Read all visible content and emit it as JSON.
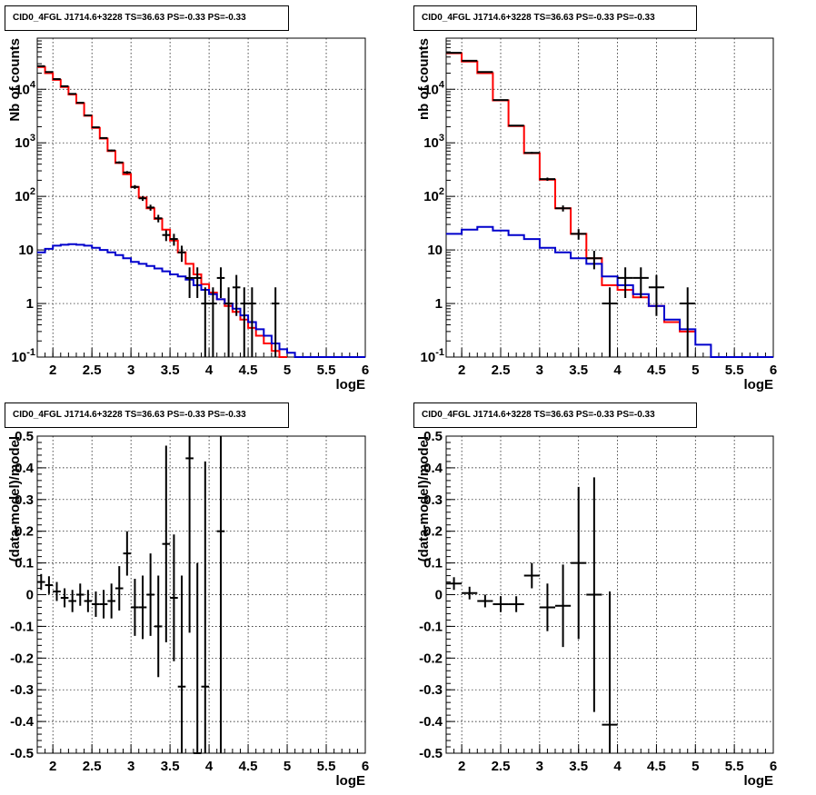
{
  "chart_data": [
    {
      "type": "histogram-log",
      "title": "CID0_4FGL J1714.6+3228 TS=36.63 PS=-0.33 PS=-0.33",
      "xlabel": "logE",
      "ylabel": "Nb of counts",
      "xlim": [
        1.8,
        6
      ],
      "ylim": [
        0.1,
        90000
      ],
      "yscale": "log",
      "grid": true,
      "xticks": [
        "2",
        "2.5",
        "3",
        "3.5",
        "4",
        "4.5",
        "5",
        "5.5",
        "6"
      ],
      "yticks": [
        "10^-1",
        "1",
        "10",
        "10^2",
        "10^3",
        "10^4"
      ],
      "bin_edges": [
        1.8,
        1.9,
        2.0,
        2.1,
        2.2,
        2.3,
        2.4,
        2.5,
        2.6,
        2.7,
        2.8,
        2.9,
        3.0,
        3.1,
        3.2,
        3.3,
        3.4,
        3.5,
        3.6,
        3.7,
        3.8,
        3.9,
        4.0,
        4.1,
        4.2,
        4.3,
        4.4,
        4.5,
        4.6,
        4.7,
        4.8,
        4.9,
        5.0,
        5.1,
        5.2,
        5.3,
        5.4,
        5.5,
        5.6,
        5.7,
        5.8,
        5.9,
        6.0
      ],
      "series": [
        {
          "name": "model",
          "color": "#ff0000",
          "values": [
            26000,
            20000,
            15000,
            11000,
            8000,
            5500,
            3200,
            1900,
            1200,
            700,
            420,
            260,
            150,
            95,
            60,
            38,
            24,
            15,
            9,
            5.5,
            3.5,
            2.3,
            1.6,
            1.2,
            0.9,
            0.7,
            0.5,
            0.35,
            0.25,
            0.18,
            0.13,
            0.1,
            null,
            null,
            null,
            null,
            null,
            null,
            null,
            null,
            null,
            null
          ]
        },
        {
          "name": "source",
          "color": "#0000cc",
          "values": [
            9,
            10.5,
            12,
            12.5,
            12.8,
            12.5,
            12,
            11,
            10,
            9,
            8,
            7,
            6,
            5.5,
            5,
            4.5,
            4,
            3.5,
            3.2,
            2.8,
            2.2,
            1.8,
            1.5,
            1.2,
            1,
            0.8,
            0.6,
            0.45,
            0.33,
            0.25,
            0.18,
            0.14,
            0.12,
            0.1,
            0.1,
            0.1,
            0.1,
            0.1,
            0.1,
            0.1,
            0.1,
            0.1
          ]
        }
      ],
      "data_points": {
        "x": [
          1.85,
          1.95,
          2.05,
          2.15,
          2.25,
          2.35,
          2.45,
          2.55,
          2.65,
          2.75,
          2.85,
          2.95,
          3.05,
          3.15,
          3.25,
          3.35,
          3.45,
          3.55,
          3.65,
          3.75,
          3.85,
          3.95,
          4.05,
          4.15,
          4.25,
          4.35,
          4.45,
          4.55,
          4.85
        ],
        "y": [
          27000,
          21000,
          15500,
          11400,
          8200,
          5600,
          3250,
          1950,
          1230,
          720,
          430,
          280,
          150,
          92,
          62,
          39,
          19,
          16,
          9,
          3,
          3,
          1,
          1,
          3,
          1,
          2,
          1,
          1,
          1
        ]
      }
    },
    {
      "type": "histogram-log",
      "title": "CID0_4FGL J1714.6+3228 TS=36.63 PS=-0.33 PS=-0.33",
      "xlabel": "logE",
      "ylabel": "nb of counts",
      "xlim": [
        1.8,
        6
      ],
      "ylim": [
        0.1,
        90000
      ],
      "yscale": "log",
      "grid": true,
      "xticks": [
        "2",
        "2.5",
        "3",
        "3.5",
        "4",
        "4.5",
        "5",
        "5.5",
        "6"
      ],
      "yticks": [
        "10^-1",
        "1",
        "10",
        "10^2",
        "10^3",
        "10^4"
      ],
      "bin_edges": [
        1.8,
        2.0,
        2.2,
        2.4,
        2.6,
        2.8,
        3.0,
        3.2,
        3.4,
        3.6,
        3.8,
        4.0,
        4.2,
        4.4,
        4.6,
        4.8,
        5.0,
        5.2,
        5.4,
        5.6,
        5.8,
        6.0
      ],
      "series": [
        {
          "name": "model",
          "color": "#ff0000",
          "values": [
            47000,
            33000,
            20000,
            6200,
            2050,
            640,
            205,
            60,
            20,
            7,
            2.2,
            1.8,
            1.3,
            0.9,
            0.45,
            0.3,
            null,
            null,
            null,
            null,
            null
          ]
        },
        {
          "name": "source",
          "color": "#0000cc",
          "values": [
            20,
            24,
            27,
            23,
            19,
            16,
            11,
            9,
            7,
            5.5,
            3.2,
            2.2,
            1.5,
            0.9,
            0.5,
            0.33,
            0.17,
            0.1,
            0.1,
            0.1,
            0.1
          ]
        }
      ],
      "data_points": {
        "x": [
          1.9,
          2.1,
          2.3,
          2.5,
          2.7,
          2.9,
          3.1,
          3.3,
          3.5,
          3.7,
          3.9,
          4.1,
          4.3,
          4.5,
          4.9
        ],
        "y": [
          48000,
          34000,
          21000,
          6300,
          2100,
          650,
          210,
          60,
          20,
          7,
          1,
          3,
          3,
          2,
          1
        ]
      }
    },
    {
      "type": "scatter-errorbars",
      "title": "CID0_4FGL J1714.6+3228 TS=36.63 PS=-0.33 PS=-0.33",
      "xlabel": "logE",
      "ylabel": "(data-model)/model",
      "xlim": [
        1.8,
        6
      ],
      "ylim": [
        -0.5,
        0.5
      ],
      "grid": true,
      "xticks": [
        "2",
        "2.5",
        "3",
        "3.5",
        "4",
        "4.5",
        "5",
        "5.5",
        "6"
      ],
      "yticks": [
        "-0.5",
        "-0.4",
        "-0.3",
        "-0.2",
        "-0.1",
        "0",
        "0.1",
        "0.2",
        "0.3",
        "0.4",
        "0.5"
      ],
      "points": {
        "x": [
          1.85,
          1.95,
          2.05,
          2.15,
          2.25,
          2.35,
          2.45,
          2.55,
          2.65,
          2.75,
          2.85,
          2.95,
          3.05,
          3.15,
          3.25,
          3.35,
          3.45,
          3.55,
          3.65,
          3.75,
          3.85,
          3.95,
          4.15
        ],
        "y": [
          0.04,
          0.03,
          0.01,
          -0.01,
          -0.02,
          0.0,
          -0.02,
          -0.03,
          -0.03,
          -0.02,
          0.02,
          0.13,
          -0.04,
          -0.04,
          0.0,
          -0.1,
          0.16,
          -0.01,
          -0.29,
          0.43,
          -0.5,
          -0.29,
          0.2
        ],
        "yerr": [
          0.025,
          0.028,
          0.03,
          0.03,
          0.035,
          0.035,
          0.035,
          0.04,
          0.045,
          0.055,
          0.07,
          0.07,
          0.09,
          0.1,
          0.13,
          0.16,
          0.31,
          0.2,
          0.35,
          0.55,
          0.6,
          0.71,
          0.9
        ]
      }
    },
    {
      "type": "scatter-errorbars",
      "title": "CID0_4FGL J1714.6+3228 TS=36.63 PS=-0.33 PS=-0.33",
      "xlabel": "logE",
      "ylabel": "(data-model)/model",
      "xlim": [
        1.8,
        6
      ],
      "ylim": [
        -0.5,
        0.5
      ],
      "grid": true,
      "xticks": [
        "2",
        "2.5",
        "3",
        "3.5",
        "4",
        "4.5",
        "5",
        "5.5",
        "6"
      ],
      "yticks": [
        "-0.5",
        "-0.4",
        "-0.3",
        "-0.2",
        "-0.1",
        "0",
        "0.1",
        "0.2",
        "0.3",
        "0.4",
        "0.5"
      ],
      "points": {
        "x": [
          1.9,
          2.1,
          2.3,
          2.5,
          2.7,
          2.9,
          3.1,
          3.3,
          3.5,
          3.7,
          3.9
        ],
        "y": [
          0.035,
          0.005,
          -0.02,
          -0.03,
          -0.03,
          0.06,
          -0.04,
          -0.035,
          0.1,
          0.0,
          -0.41
        ],
        "yerr": [
          0.02,
          0.02,
          0.02,
          0.025,
          0.025,
          0.04,
          0.075,
          0.13,
          0.24,
          0.37,
          0.42
        ]
      }
    }
  ]
}
